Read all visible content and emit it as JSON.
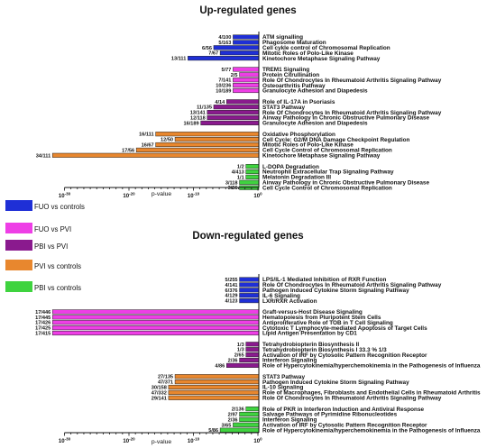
{
  "chart_data": [
    {
      "type": "bar",
      "orientation": "horizontal",
      "title": "Up-regulated genes",
      "xlabel": "p-value",
      "x_scale": "log",
      "x_ticks": [
        "10^-30",
        "10^-20",
        "10^-10",
        "10^0"
      ],
      "groups": [
        {
          "series": "FUO vs controls",
          "bars": [
            {
              "label": "ATM signalling",
              "count": "4/100",
              "p_value": 0.0001
            },
            {
              "label": "Phagosome Maturation",
              "count": "5/163",
              "p_value": 0.0001
            },
            {
              "label": "Cell cykle control of Chromosomal Replication",
              "count": "6/56",
              "p_value": 1e-07
            },
            {
              "label": "Mitotic Roles of Polo-Like Kinase",
              "count": "7/67",
              "p_value": 1e-06
            },
            {
              "label": "Kinetochore Metaphase Signaling Pathway",
              "count": "13/111",
              "p_value": 1e-11
            }
          ]
        },
        {
          "series": "FUO vs PVI",
          "bars": [
            {
              "label": "TREM1 Signaling",
              "count": "5/77",
              "p_value": 0.0001
            },
            {
              "label": "Protein Citrullination",
              "count": "2/5",
              "p_value": 0.001
            },
            {
              "label": "Role Of Chondrocytes In Rheumatoid Arthritis Signaling Pathway",
              "count": "7/141",
              "p_value": 0.0001
            },
            {
              "label": "Osteoarthritis Pathway",
              "count": "10/236",
              "p_value": 0.0001
            },
            {
              "label": "Granulocyte Adhesion and Diapedesis",
              "count": "10/189",
              "p_value": 0.0001
            }
          ]
        },
        {
          "series": "PBI vs PVI",
          "bars": [
            {
              "label": "Role of IL-17A in Psoriasis",
              "count": "4/14",
              "p_value": 1e-05
            },
            {
              "label": "STAT3 Pathway",
              "count": "11/135",
              "p_value": 1e-07
            },
            {
              "label": "Role Of Chondrocytes In Rheumatoid Arthritis Signaling Pathway",
              "count": "13/141",
              "p_value": 1e-08
            },
            {
              "label": "Airway Pathology in Chronic Obstructive Pulmonary Disease",
              "count": "12/118",
              "p_value": 1e-08
            },
            {
              "label": "Granulocyte Adhesion and Diapedesis",
              "count": "16/189",
              "p_value": 1e-09
            }
          ]
        },
        {
          "series": "PVI vs controls",
          "bars": [
            {
              "label": "Oxidative Phosphorylation",
              "count": "16/111",
              "p_value": 1e-16
            },
            {
              "label": "Cell Cycle: G2/M DNA Damage Checkpoint Regulation",
              "count": "12/50",
              "p_value": 1e-13
            },
            {
              "label": "Mitotic Roles of Polo-Like Kinase",
              "count": "16/67",
              "p_value": 1e-16
            },
            {
              "label": "Cell Cycle Control of Chromosomal Replication",
              "count": "17/56",
              "p_value": 1e-19
            },
            {
              "label": "Kinetochore Metaphase Signaling Pathway",
              "count": "34/111",
              "p_value": 1e-32
            }
          ]
        },
        {
          "series": "PBI vs controls",
          "bars": [
            {
              "label": "L-DOPA Degradation",
              "count": "1/2",
              "p_value": 0.01
            },
            {
              "label": "Neutrophil Extracellular Trap Signaling Pathway",
              "count": "4/413",
              "p_value": 0.01
            },
            {
              "label": "Melatonin Degradation III",
              "count": "1/1",
              "p_value": 0.01
            },
            {
              "label": "Airway Pathology in Chronic Obstructive Pulmonary Disease",
              "count": "3/118",
              "p_value": 0.001
            },
            {
              "label": "Cell Cycle Control of Chromosomal Replication",
              "count": "3/56",
              "p_value": 0.001
            }
          ]
        }
      ]
    },
    {
      "type": "bar",
      "orientation": "horizontal",
      "title": "Down-regulated genes",
      "xlabel": "p-value",
      "x_scale": "log",
      "x_ticks": [
        "10^-30",
        "10^-20",
        "10^-10",
        "10^0"
      ],
      "groups": [
        {
          "series": "FUO vs controls",
          "bars": [
            {
              "label": "LPS/IL-1 Mediated Inhibition of RXR Function",
              "count": "5/255",
              "p_value": 0.001
            },
            {
              "label": "Role Of Chondrocytes In Rheumatoid Arthritis Signaling Pathway",
              "count": "4/141",
              "p_value": 0.001
            },
            {
              "label": "Pathogen Induced Cytokine Storm Signaling Pathway",
              "count": "6/376",
              "p_value": 0.001
            },
            {
              "label": "IL-6 Signaling",
              "count": "4/129",
              "p_value": 0.001
            },
            {
              "label": "LXR/RXR Activation",
              "count": "4/123",
              "p_value": 0.001
            }
          ]
        },
        {
          "series": "FUO vs PVI",
          "bars": [
            {
              "label": "Graft-versus-Host Disease Signaling",
              "count": "17/446",
              "p_value": 1e-32
            },
            {
              "label": "Hematopoiesis from Pluripotent Stem Cells",
              "count": "17/445",
              "p_value": 1e-32
            },
            {
              "label": "Antiproliferative Role of TOB in T Cell Signaling",
              "count": "17/426",
              "p_value": 1e-32
            },
            {
              "label": "Cytotoxic T Lymphocyte-mediated Apoptosis of Target Cells",
              "count": "17/425",
              "p_value": 1e-32
            },
            {
              "label": "Lipid Antigen Presentation by CD1",
              "count": "17/415",
              "p_value": 1e-32
            }
          ]
        },
        {
          "series": "PBI vs PVI",
          "bars": [
            {
              "label": "Tetrahydrobiopterin Biosynthesis II",
              "count": "1/3",
              "p_value": 0.01
            },
            {
              "label": "Tetrahydrobiopterin Biosynthesis I 33.3 % 1/3",
              "count": "1/3",
              "p_value": 0.01
            },
            {
              "label": "Activation of IRF by Cytosolic Pattern Recognition Receptor",
              "count": "2/65",
              "p_value": 0.01
            },
            {
              "label": "Interferon Signaling",
              "count": "2/36",
              "p_value": 0.001
            },
            {
              "label": "Role of Hypercytokinemia/hyperchemokinemia in the Pathogenesis of Influenza",
              "count": "4/86",
              "p_value": 1e-05
            }
          ]
        },
        {
          "series": "PVI vs controls",
          "bars": [
            {
              "label": "STAT3 Pathway",
              "count": "27/135",
              "p_value": 1e-13
            },
            {
              "label": "Pathogen Induced Cytokine Storm Signaling Pathway",
              "count": "47/371",
              "p_value": 1e-13
            },
            {
              "label": "IL-10 Signaling",
              "count": "30/158",
              "p_value": 1e-14
            },
            {
              "label": "Role of Macrophages, Fibroblasts and Endothelial Cells in Rheumatoid Arthritis",
              "count": "47/332",
              "p_value": 1e-14
            },
            {
              "label": "Role Of Chondrocytes In Rheumatoid Arthritis Signaling Pathway",
              "count": "29/141",
              "p_value": 1e-14
            }
          ]
        },
        {
          "series": "PBI vs controls",
          "bars": [
            {
              "label": "Role of PKR in Interferon Induction and Antiviral Response",
              "count": "2/136",
              "p_value": 0.01
            },
            {
              "label": "Salvage Pathways of Pyrimidine Ribonucleotides",
              "count": "2/97",
              "p_value": 0.001
            },
            {
              "label": "Interferon Signaling",
              "count": "2/36",
              "p_value": 0.001
            },
            {
              "label": "Activation of IRF by Cytosolic Pattern Recognition Receptor",
              "count": "3/65",
              "p_value": 0.0001
            },
            {
              "label": "Role of Hypercytokinemia/hyperchemokinemia in the Pathogenesis of Influenza",
              "count": "5/86",
              "p_value": 1e-06
            }
          ]
        }
      ]
    }
  ],
  "legend": [
    {
      "label": "FUO vs controls",
      "color": "#1f2fd6"
    },
    {
      "label": "FUO vs PVI",
      "color": "#ee3ee6"
    },
    {
      "label": "PBI vs PVI",
      "color": "#8a1a8e"
    },
    {
      "label": "PVI vs  controls",
      "color": "#e8872e"
    },
    {
      "label": "PBI vs controls",
      "color": "#3fd33f"
    }
  ]
}
